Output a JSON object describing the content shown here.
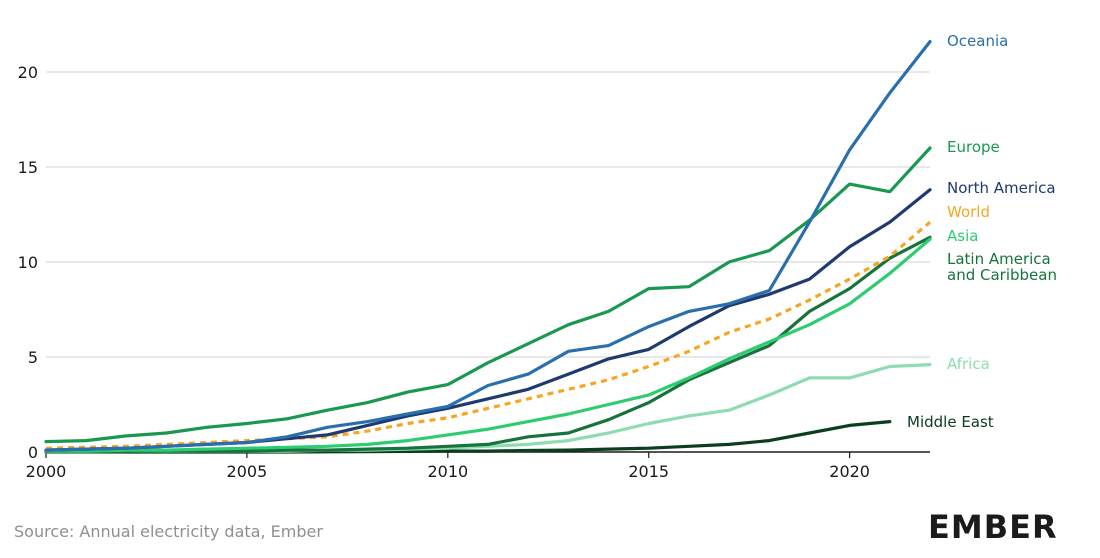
{
  "source": "Source: Annual electricity data, Ember",
  "logo": "EMBER",
  "chart_data": {
    "type": "line",
    "title": "",
    "xlabel": "",
    "ylabel": "",
    "xlim": [
      2000,
      2022
    ],
    "ylim": [
      0,
      22
    ],
    "grid": "horizontal",
    "legend": "labels at line ends, right",
    "x_ticks": [
      2000,
      2005,
      2010,
      2015,
      2020
    ],
    "y_ticks": [
      0,
      5,
      10,
      15,
      20
    ],
    "series": [
      {
        "name": "Oceania",
        "color": "#2a6fad",
        "dashed": false,
        "x": [
          2000,
          2001,
          2002,
          2003,
          2004,
          2005,
          2006,
          2007,
          2008,
          2009,
          2010,
          2011,
          2012,
          2013,
          2014,
          2015,
          2016,
          2017,
          2018,
          2019,
          2020,
          2021,
          2022
        ],
        "y": [
          0.1,
          0.15,
          0.2,
          0.3,
          0.4,
          0.5,
          0.8,
          1.3,
          1.6,
          2.0,
          2.4,
          3.5,
          4.1,
          5.3,
          5.6,
          6.6,
          7.4,
          7.8,
          8.5,
          12.1,
          15.9,
          18.9,
          21.6
        ]
      },
      {
        "name": "Europe",
        "color": "#1a9850",
        "dashed": false,
        "x": [
          2000,
          2001,
          2002,
          2003,
          2004,
          2005,
          2006,
          2007,
          2008,
          2009,
          2010,
          2011,
          2012,
          2013,
          2014,
          2015,
          2016,
          2017,
          2018,
          2019,
          2020,
          2021,
          2022
        ],
        "y": [
          0.55,
          0.6,
          0.85,
          1.0,
          1.3,
          1.5,
          1.75,
          2.2,
          2.6,
          3.15,
          3.55,
          4.7,
          5.7,
          6.7,
          7.4,
          8.6,
          8.7,
          10.0,
          10.6,
          12.2,
          14.1,
          13.7,
          16.0
        ]
      },
      {
        "name": "North America",
        "color": "#1f3a6e",
        "dashed": false,
        "x": [
          2000,
          2001,
          2002,
          2003,
          2004,
          2005,
          2006,
          2007,
          2008,
          2009,
          2010,
          2011,
          2012,
          2013,
          2014,
          2015,
          2016,
          2017,
          2018,
          2019,
          2020,
          2021,
          2022
        ],
        "y": [
          0.1,
          0.15,
          0.2,
          0.3,
          0.4,
          0.5,
          0.7,
          0.9,
          1.4,
          1.9,
          2.3,
          2.8,
          3.3,
          4.1,
          4.9,
          5.4,
          6.6,
          7.7,
          8.3,
          9.1,
          10.8,
          12.1,
          13.8
        ]
      },
      {
        "name": "World",
        "color": "#f5a623",
        "dashed": true,
        "x": [
          2000,
          2001,
          2002,
          2003,
          2004,
          2005,
          2006,
          2007,
          2008,
          2009,
          2010,
          2011,
          2012,
          2013,
          2014,
          2015,
          2016,
          2017,
          2018,
          2019,
          2020,
          2021,
          2022
        ],
        "y": [
          0.2,
          0.25,
          0.3,
          0.4,
          0.5,
          0.6,
          0.7,
          0.8,
          1.1,
          1.5,
          1.8,
          2.3,
          2.8,
          3.3,
          3.8,
          4.5,
          5.3,
          6.3,
          7.0,
          8.0,
          9.1,
          10.3,
          12.1
        ]
      },
      {
        "name": "Asia",
        "color": "#2ecc71",
        "dashed": false,
        "x": [
          2000,
          2001,
          2002,
          2003,
          2004,
          2005,
          2006,
          2007,
          2008,
          2009,
          2010,
          2011,
          2012,
          2013,
          2014,
          2015,
          2016,
          2017,
          2018,
          2019,
          2020,
          2021,
          2022
        ],
        "y": [
          0.05,
          0.05,
          0.1,
          0.1,
          0.15,
          0.2,
          0.25,
          0.3,
          0.4,
          0.6,
          0.9,
          1.2,
          1.6,
          2.0,
          2.5,
          3.0,
          3.9,
          4.9,
          5.8,
          6.7,
          7.8,
          9.4,
          11.2
        ]
      },
      {
        "name": "Latin America and Caribbean",
        "color": "#17733b",
        "dashed": false,
        "x": [
          2000,
          2001,
          2002,
          2003,
          2004,
          2005,
          2006,
          2007,
          2008,
          2009,
          2010,
          2011,
          2012,
          2013,
          2014,
          2015,
          2016,
          2017,
          2018,
          2019,
          2020,
          2021,
          2022
        ],
        "y": [
          0.02,
          0.02,
          0.03,
          0.05,
          0.05,
          0.05,
          0.1,
          0.1,
          0.15,
          0.2,
          0.3,
          0.4,
          0.8,
          1.0,
          1.7,
          2.6,
          3.8,
          4.7,
          5.6,
          7.4,
          8.6,
          10.2,
          11.3
        ]
      },
      {
        "name": "Africa",
        "color": "#8fdcb2",
        "dashed": false,
        "x": [
          2000,
          2001,
          2002,
          2003,
          2004,
          2005,
          2006,
          2007,
          2008,
          2009,
          2010,
          2011,
          2012,
          2013,
          2014,
          2015,
          2016,
          2017,
          2018,
          2019,
          2020,
          2021,
          2022
        ],
        "y": [
          0.02,
          0.02,
          0.03,
          0.03,
          0.05,
          0.05,
          0.05,
          0.1,
          0.1,
          0.15,
          0.2,
          0.3,
          0.4,
          0.6,
          1.0,
          1.5,
          1.9,
          2.2,
          3.0,
          3.9,
          3.9,
          4.5,
          4.6
        ]
      },
      {
        "name": "Middle East",
        "color": "#0b3d1f",
        "dashed": false,
        "x": [
          2000,
          2001,
          2002,
          2003,
          2004,
          2005,
          2006,
          2007,
          2008,
          2009,
          2010,
          2011,
          2012,
          2013,
          2014,
          2015,
          2016,
          2017,
          2018,
          2019,
          2020,
          2021
        ],
        "y": [
          0.0,
          0.0,
          0.0,
          0.0,
          0.0,
          0.0,
          0.0,
          0.01,
          0.02,
          0.03,
          0.05,
          0.05,
          0.08,
          0.1,
          0.15,
          0.2,
          0.3,
          0.4,
          0.6,
          1.0,
          1.4,
          1.6
        ]
      }
    ]
  }
}
